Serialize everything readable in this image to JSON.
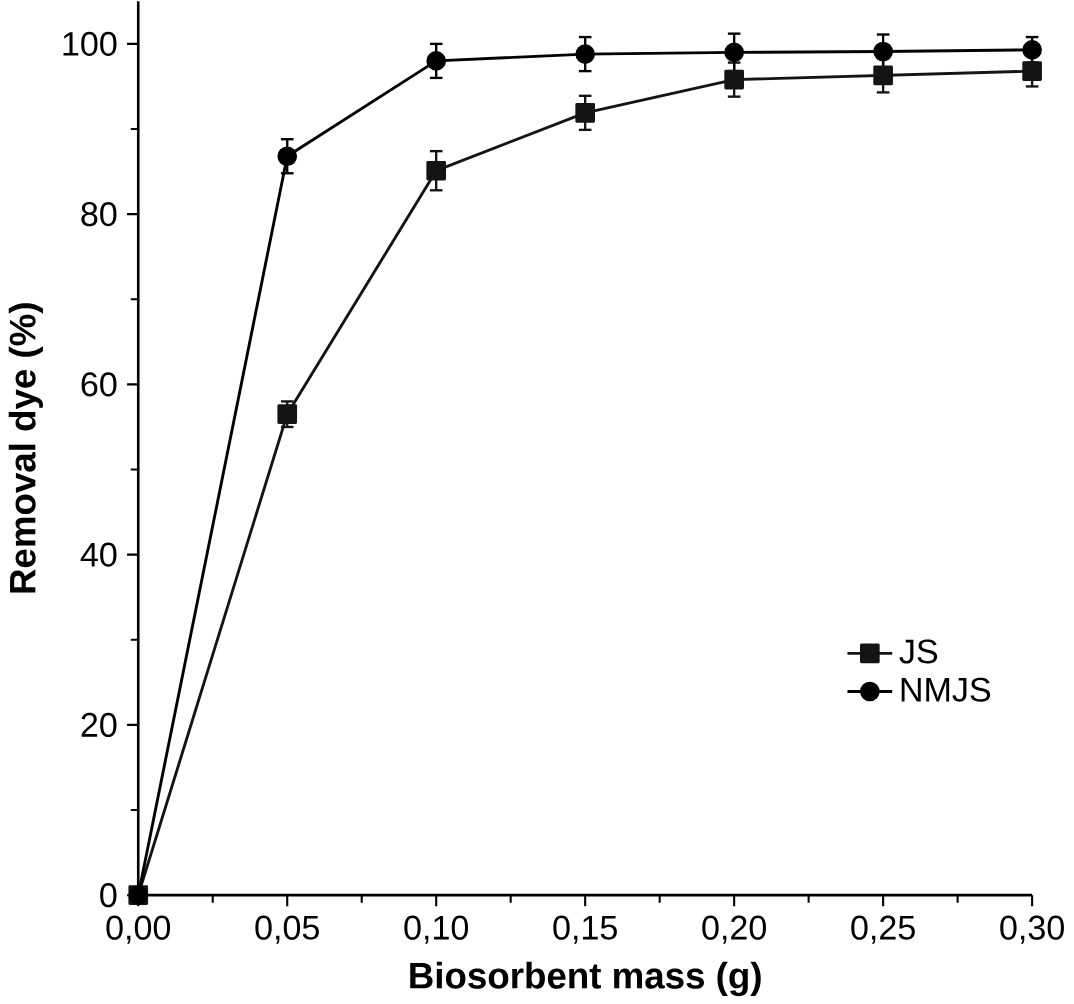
{
  "chart_data": {
    "type": "line",
    "xlabel": "Biosorbent mass (g)",
    "ylabel": "Removal dye (%)",
    "x": [
      0,
      0.05,
      0.1,
      0.15,
      0.2,
      0.25,
      0.3
    ],
    "series": [
      {
        "name": "JS",
        "color": "#141414",
        "marker": "square",
        "values": [
          0,
          56.5,
          85.1,
          91.9,
          95.8,
          96.3,
          96.8
        ],
        "errors": [
          null,
          1.5,
          2.3,
          2,
          2,
          2,
          1.8
        ]
      },
      {
        "name": "NMJS",
        "color": "#000000",
        "marker": "circle",
        "values": [
          0,
          86.8,
          98,
          98.8,
          99,
          99.1,
          99.3
        ],
        "errors": [
          null,
          2,
          2,
          2,
          2.2,
          2,
          1.5
        ]
      }
    ],
    "xlim": [
      0,
      0.3
    ],
    "ylim": [
      0,
      105
    ],
    "xticks": [
      {
        "value": 0,
        "label": "0,00"
      },
      {
        "value": 0.05,
        "label": "0,05"
      },
      {
        "value": 0.1,
        "label": "0,10"
      },
      {
        "value": 0.15,
        "label": "0,15"
      },
      {
        "value": 0.2,
        "label": "0,20"
      },
      {
        "value": 0.25,
        "label": "0,25"
      },
      {
        "value": 0.3,
        "label": "0,30"
      }
    ],
    "yticks": [
      0,
      20,
      40,
      60,
      80,
      100
    ],
    "legend": "bottom right",
    "line_style": "solid",
    "grid": false
  }
}
